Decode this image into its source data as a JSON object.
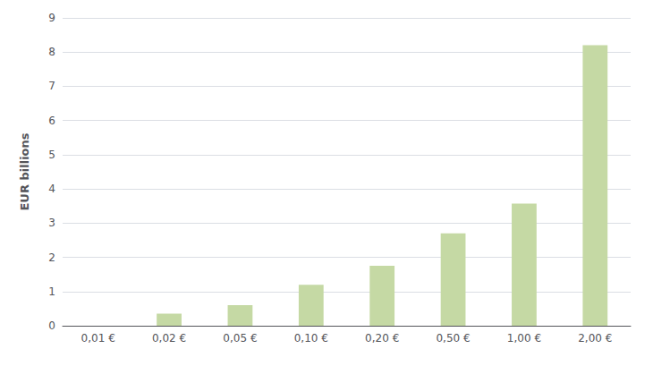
{
  "chart_data": {
    "type": "bar",
    "categories": [
      "0,01 €",
      "0,02 €",
      "0,05 €",
      "0,10 €",
      "0,20 €",
      "0,50 €",
      "1,00 €",
      "2,00 €"
    ],
    "values": [
      0.0,
      0.35,
      0.6,
      1.2,
      1.75,
      2.7,
      3.57,
      8.2
    ],
    "color": "#c5d9a4",
    "ylabel": "EUR billions",
    "ylim": [
      0,
      9
    ],
    "yticks": [
      0,
      1,
      2,
      3,
      4,
      5,
      6,
      7,
      8,
      9
    ],
    "grid": true
  }
}
